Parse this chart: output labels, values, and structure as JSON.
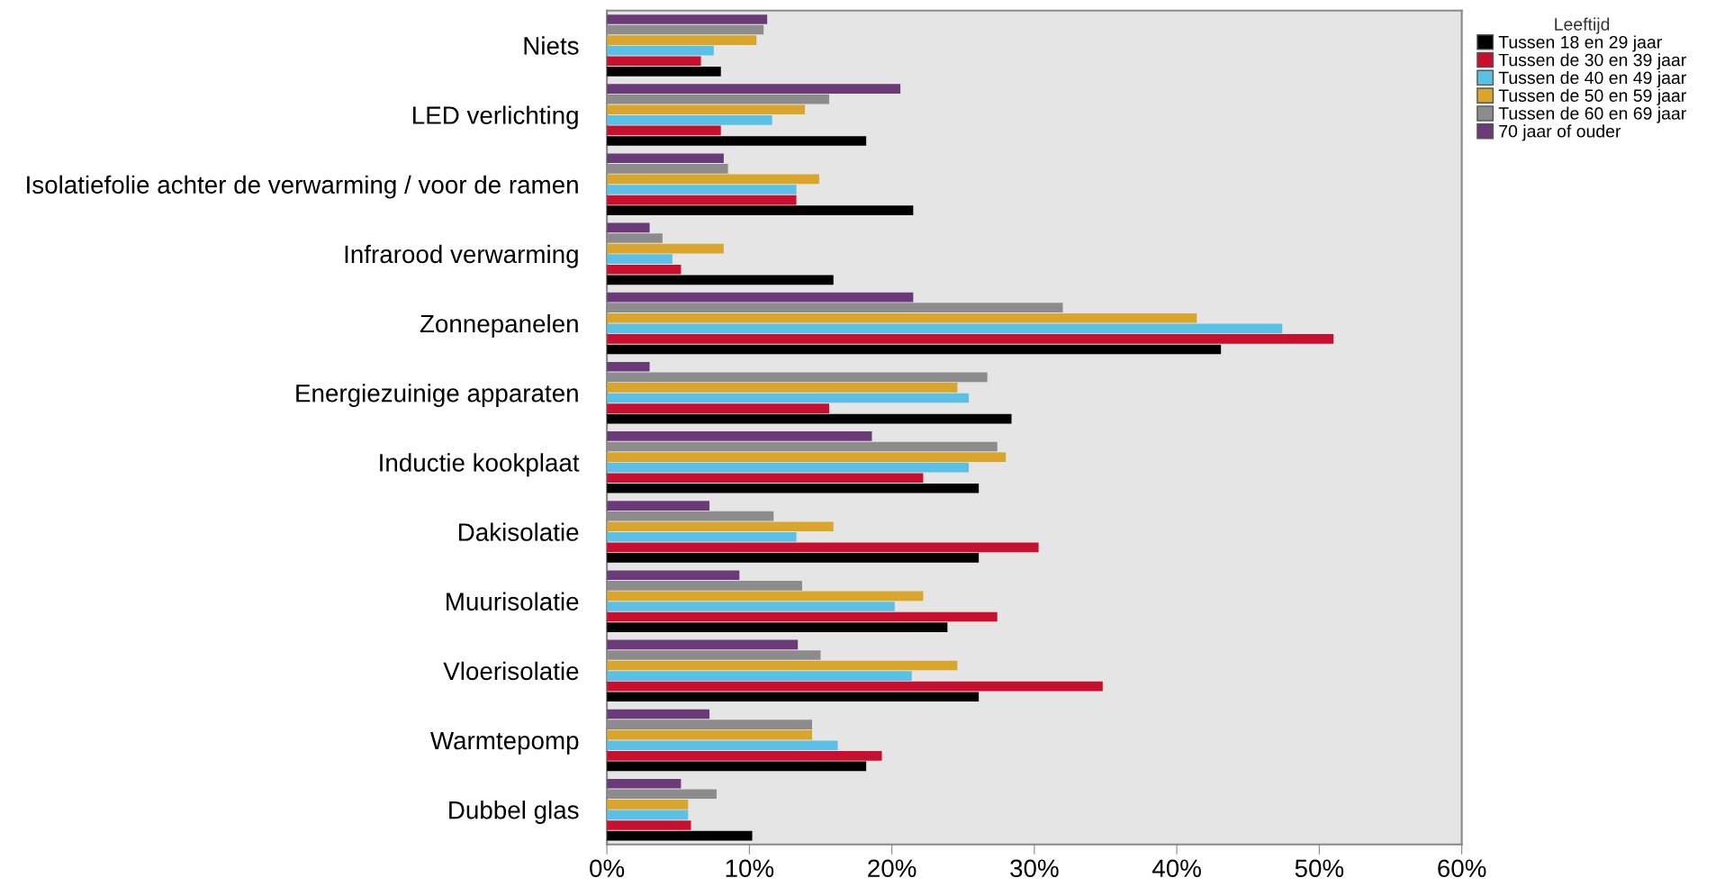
{
  "chart_data": {
    "type": "bar",
    "orientation": "horizontal",
    "legend_title": "Leeftijd",
    "legend": "top right",
    "categories": [
      "Niets",
      "LED verlichting",
      "Isolatiefolie achter de verwarming / voor de ramen",
      "Infrarood verwarming",
      "Zonnepanelen",
      "Energiezuinige apparaten",
      "Inductie kookplaat",
      "Dakisolatie",
      "Muurisolatie",
      "Vloerisolatie",
      "Warmtepomp",
      "Dubbel glas"
    ],
    "series": [
      {
        "name": "Tussen 18 en 29 jaar",
        "color": "#000000",
        "values": [
          8.0,
          18.2,
          21.5,
          15.9,
          43.1,
          28.4,
          26.1,
          26.1,
          23.9,
          26.1,
          18.2,
          10.2
        ]
      },
      {
        "name": "Tussen de 30 en 39 jaar",
        "color": "#c8102e",
        "values": [
          6.6,
          8.0,
          13.3,
          5.2,
          51.0,
          15.6,
          22.2,
          30.3,
          27.4,
          34.8,
          19.3,
          5.9
        ]
      },
      {
        "name": "Tussen de 40 en 49 jaar",
        "color": "#5bc0e6",
        "values": [
          7.5,
          11.6,
          13.3,
          4.6,
          47.4,
          25.4,
          25.4,
          13.3,
          20.2,
          21.4,
          16.2,
          5.7
        ]
      },
      {
        "name": "Tussen de 50 en 59 jaar",
        "color": "#d9a62b",
        "values": [
          10.5,
          13.9,
          14.9,
          8.2,
          41.4,
          24.6,
          28.0,
          15.9,
          22.2,
          24.6,
          14.4,
          5.7
        ]
      },
      {
        "name": "Tussen de 60 en 69 jaar",
        "color": "#8c8c8c",
        "values": [
          11.0,
          15.6,
          8.5,
          3.9,
          32.0,
          26.7,
          27.4,
          11.7,
          13.7,
          15.0,
          14.4,
          7.7
        ]
      },
      {
        "name": "70 jaar of ouder",
        "color": "#6b3a78",
        "values": [
          11.25,
          20.6,
          8.2,
          3.0,
          21.5,
          3.0,
          18.6,
          7.2,
          9.3,
          13.4,
          7.2,
          5.2
        ]
      }
    ],
    "xlim": [
      0,
      60
    ],
    "xticks": [
      {
        "value": 0,
        "label": "0%"
      },
      {
        "value": 10,
        "label": "10%"
      },
      {
        "value": 20,
        "label": "20%"
      },
      {
        "value": 30,
        "label": "30%"
      },
      {
        "value": 40,
        "label": "40%"
      },
      {
        "value": 50,
        "label": "50%"
      },
      {
        "value": 60,
        "label": "60%"
      }
    ],
    "grid": false
  }
}
